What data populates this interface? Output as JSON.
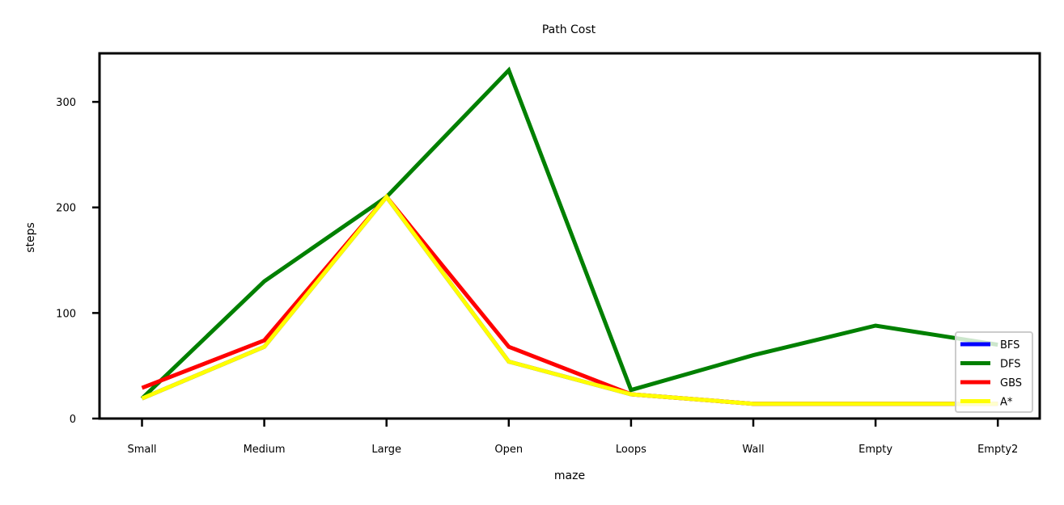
{
  "chart_data": {
    "type": "line",
    "title": "Path Cost",
    "xlabel": "maze",
    "ylabel": "steps",
    "categories": [
      "Small",
      "Medium",
      "Large",
      "Open",
      "Loops",
      "Wall",
      "Empty",
      "Empty2"
    ],
    "ylim": [
      0,
      346
    ],
    "yticks": [
      0,
      100,
      200,
      300
    ],
    "grid": false,
    "legend_position": "lower-right",
    "series": [
      {
        "name": "BFS",
        "color": "#0000ff",
        "values": [
          19,
          68,
          210,
          54,
          23,
          14,
          14,
          14
        ]
      },
      {
        "name": "DFS",
        "color": "#008000",
        "values": [
          19,
          130,
          210,
          330,
          27,
          60,
          88,
          70
        ]
      },
      {
        "name": "GBS",
        "color": "#ff0000",
        "values": [
          29,
          74,
          210,
          68,
          23,
          14,
          14,
          14
        ]
      },
      {
        "name": "A*",
        "color": "#ffff00",
        "values": [
          19,
          68,
          210,
          54,
          23,
          14,
          14,
          14
        ]
      }
    ]
  }
}
